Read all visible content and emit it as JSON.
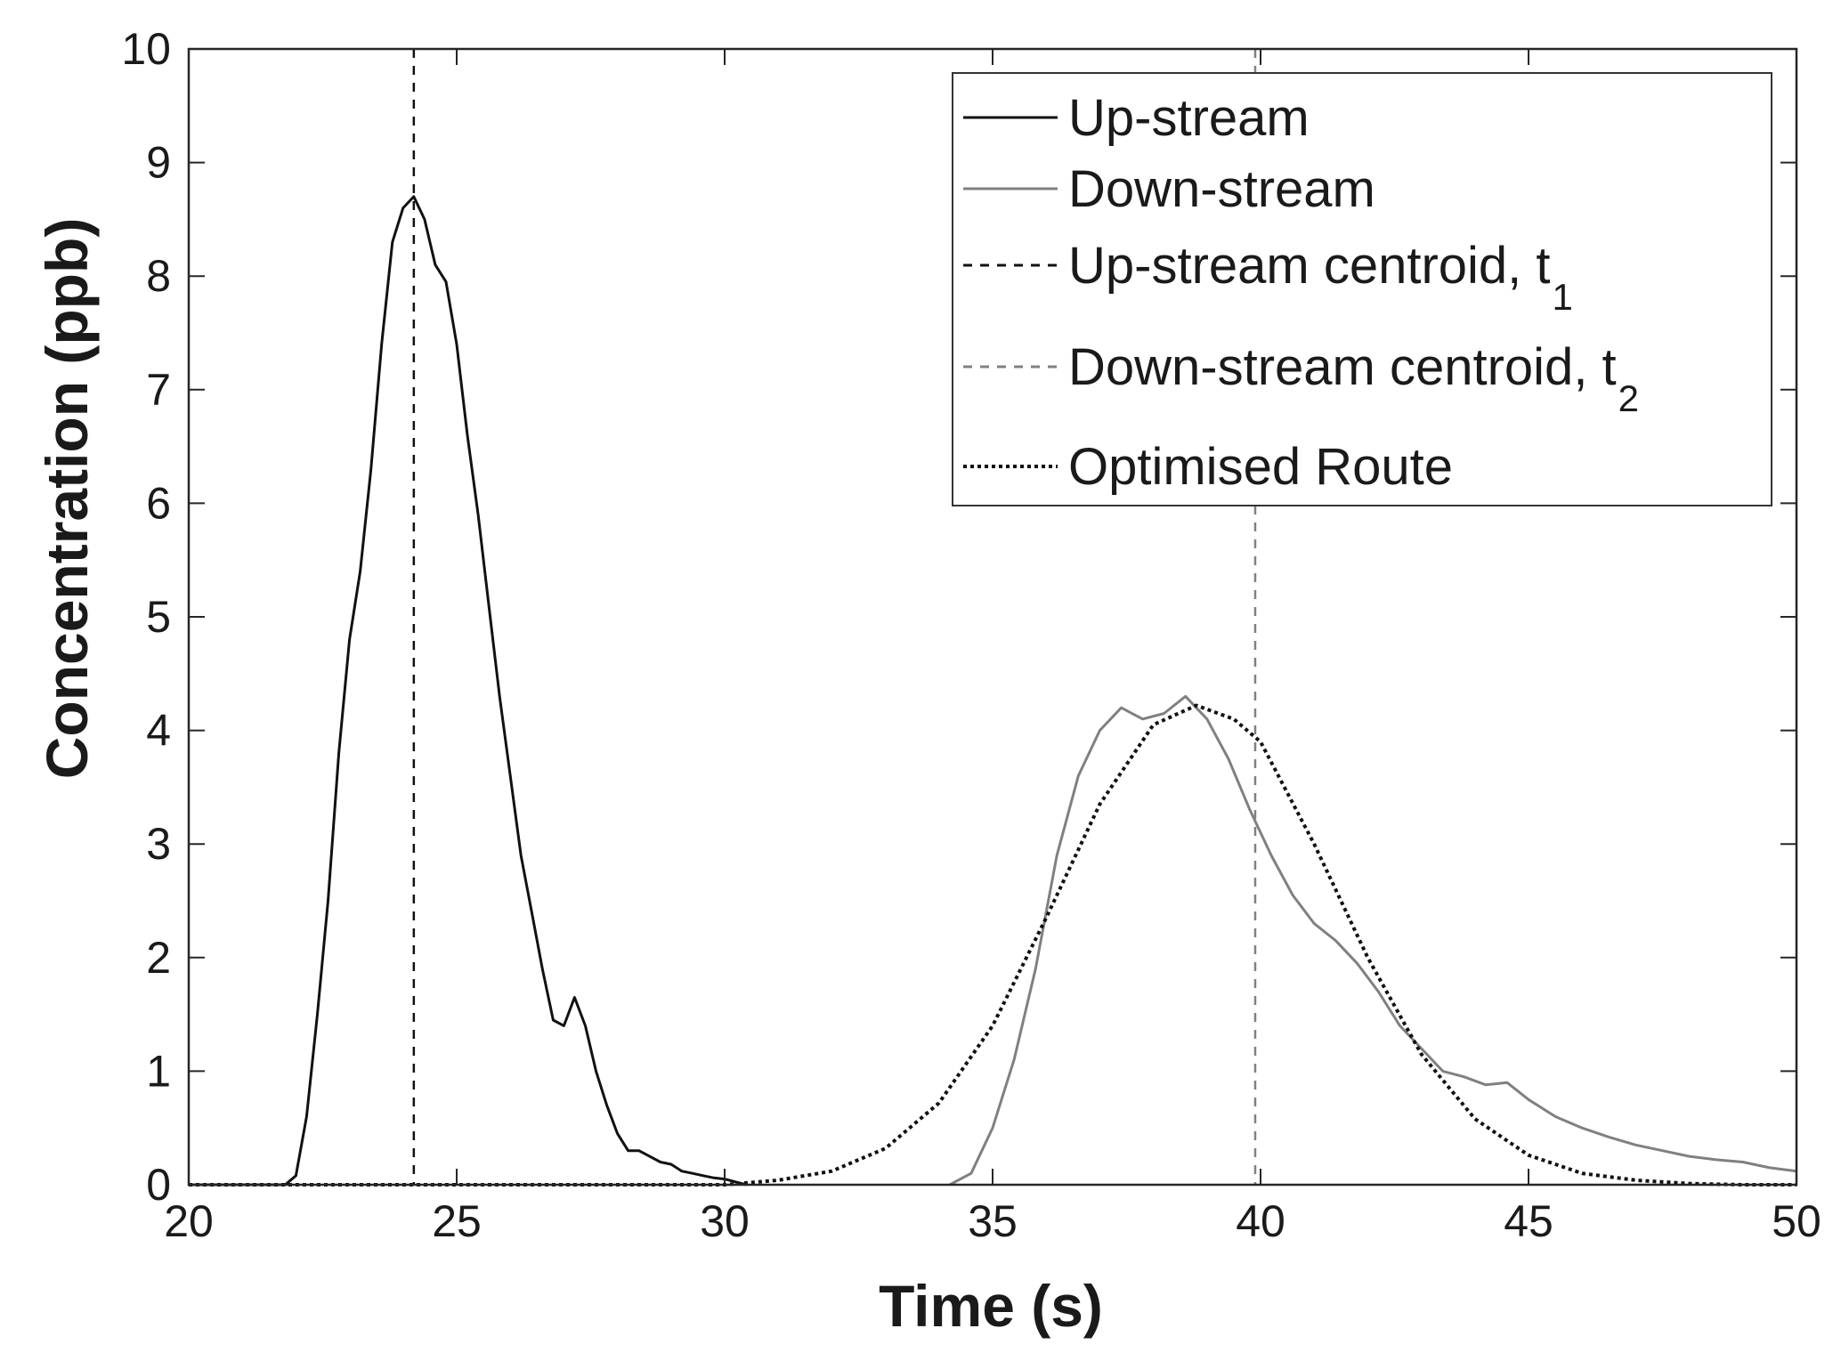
{
  "chart_data": {
    "type": "line",
    "title": "",
    "xlabel": "Time (s)",
    "ylabel": "Concentration (ppb)",
    "xlim": [
      20,
      50
    ],
    "ylim": [
      0,
      10
    ],
    "xticks": [
      20,
      25,
      30,
      35,
      40,
      45,
      50
    ],
    "yticks": [
      0,
      1,
      2,
      3,
      4,
      5,
      6,
      7,
      8,
      9,
      10
    ],
    "grid": false,
    "legend_position": "top-right",
    "series": [
      {
        "name": "Up-stream",
        "style": "solid",
        "color": "#111111",
        "x": [
          20,
          21.8,
          22.0,
          22.2,
          22.4,
          22.6,
          22.8,
          23.0,
          23.2,
          23.4,
          23.6,
          23.8,
          24.0,
          24.2,
          24.4,
          24.6,
          24.8,
          25.0,
          25.2,
          25.4,
          25.6,
          25.8,
          26.0,
          26.2,
          26.4,
          26.6,
          26.8,
          27.0,
          27.2,
          27.4,
          27.6,
          27.8,
          28.0,
          28.2,
          28.4,
          28.6,
          28.8,
          29.0,
          29.2,
          29.4,
          29.6,
          29.8,
          30.0,
          30.4
        ],
        "y": [
          0,
          0,
          0.08,
          0.6,
          1.5,
          2.5,
          3.8,
          4.8,
          5.4,
          6.3,
          7.4,
          8.3,
          8.6,
          8.7,
          8.5,
          8.1,
          7.95,
          7.4,
          6.6,
          5.9,
          5.1,
          4.3,
          3.6,
          2.9,
          2.4,
          1.9,
          1.45,
          1.4,
          1.65,
          1.4,
          1.0,
          0.7,
          0.45,
          0.3,
          0.3,
          0.25,
          0.2,
          0.18,
          0.12,
          0.1,
          0.08,
          0.06,
          0.05,
          0.0
        ]
      },
      {
        "name": "Down-stream",
        "style": "solid",
        "color": "#808080",
        "x": [
          34.2,
          34.6,
          35.0,
          35.4,
          35.8,
          36.2,
          36.6,
          37.0,
          37.4,
          37.8,
          38.2,
          38.6,
          39.0,
          39.4,
          39.8,
          40.2,
          40.6,
          41.0,
          41.4,
          41.8,
          42.2,
          42.6,
          43.0,
          43.4,
          43.8,
          44.2,
          44.6,
          45.0,
          45.5,
          46.0,
          46.5,
          47.0,
          47.5,
          48.0,
          48.5,
          49.0,
          49.5,
          50.0
        ],
        "y": [
          0.0,
          0.1,
          0.5,
          1.1,
          1.9,
          2.9,
          3.6,
          4.0,
          4.2,
          4.1,
          4.15,
          4.3,
          4.1,
          3.75,
          3.3,
          2.9,
          2.55,
          2.3,
          2.15,
          1.95,
          1.7,
          1.4,
          1.2,
          1.0,
          0.95,
          0.88,
          0.9,
          0.75,
          0.6,
          0.5,
          0.42,
          0.35,
          0.3,
          0.25,
          0.22,
          0.2,
          0.15,
          0.12
        ]
      },
      {
        "name": "Optimised Route",
        "style": "dotted",
        "color": "#111111",
        "x": [
          20.0,
          30.0,
          31.0,
          32.0,
          33.0,
          34.0,
          35.0,
          36.0,
          37.0,
          38.0,
          38.8,
          39.5,
          40.0,
          41.0,
          42.0,
          43.0,
          44.0,
          45.0,
          46.0,
          47.0,
          48.0,
          49.0,
          50.0
        ],
        "y": [
          0.0,
          0.0,
          0.04,
          0.12,
          0.32,
          0.72,
          1.4,
          2.35,
          3.35,
          4.05,
          4.22,
          4.1,
          3.9,
          3.0,
          2.0,
          1.15,
          0.58,
          0.26,
          0.1,
          0.04,
          0.01,
          0.0,
          0.0
        ]
      }
    ],
    "reference_lines": [
      {
        "name": "Up-stream centroid, t",
        "subscript": "1",
        "x": 24.2,
        "style": "dashed",
        "color": "#111111"
      },
      {
        "name": "Down-stream centroid, t",
        "subscript": "2",
        "x": 39.9,
        "style": "dashed",
        "color": "#808080"
      }
    ],
    "legend": [
      {
        "label": "Up-stream",
        "subscript": "",
        "style": "solid",
        "color": "#111111"
      },
      {
        "label": "Down-stream",
        "subscript": "",
        "style": "solid",
        "color": "#808080"
      },
      {
        "label": "Up-stream centroid, t",
        "subscript": "1",
        "style": "dashed",
        "color": "#111111"
      },
      {
        "label": "Down-stream centroid, t",
        "subscript": "2",
        "style": "dashed",
        "color": "#808080"
      },
      {
        "label": "Optimised Route",
        "subscript": "",
        "style": "dotted",
        "color": "#111111"
      }
    ]
  }
}
